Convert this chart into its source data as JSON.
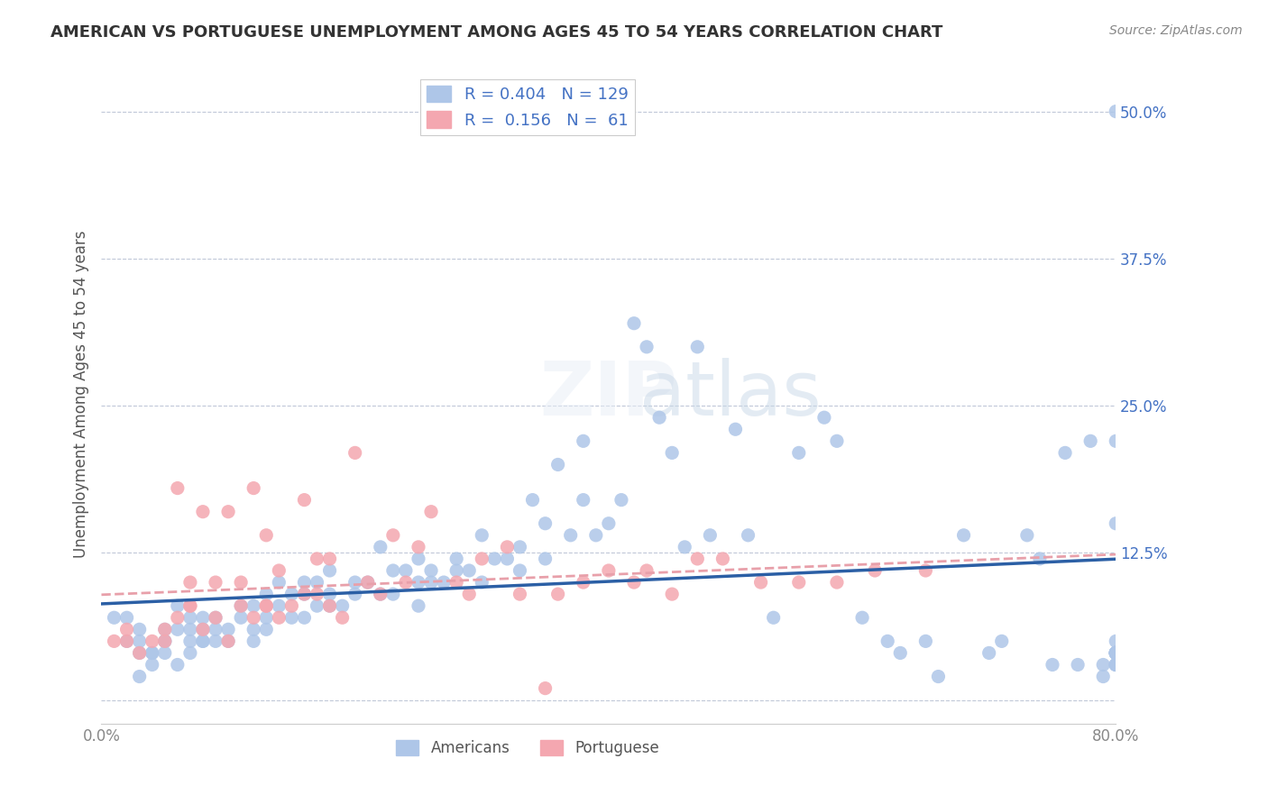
{
  "title": "AMERICAN VS PORTUGUESE UNEMPLOYMENT AMONG AGES 45 TO 54 YEARS CORRELATION CHART",
  "source": "Source: ZipAtlas.com",
  "ylabel": "Unemployment Among Ages 45 to 54 years",
  "xlabel": "",
  "xlim": [
    0.0,
    0.8
  ],
  "ylim": [
    -0.02,
    0.54
  ],
  "xticks": [
    0.0,
    0.2,
    0.4,
    0.6,
    0.8
  ],
  "xtick_labels": [
    "0.0%",
    "",
    "",
    "",
    "80.0%"
  ],
  "ytick_labels": [
    "",
    "12.5%",
    "25.0%",
    "37.5%",
    "50.0%"
  ],
  "yticks": [
    0.0,
    0.125,
    0.25,
    0.375,
    0.5
  ],
  "americans_R": 0.404,
  "americans_N": 129,
  "portuguese_R": 0.156,
  "portuguese_N": 61,
  "americans_color": "#aec6e8",
  "portuguese_color": "#f4a7b0",
  "trend_american_color": "#2b5fa5",
  "trend_portuguese_color": "#e8a0aa",
  "background_color": "#ffffff",
  "watermark": "ZIPatlas",
  "americans_x": [
    0.01,
    0.02,
    0.02,
    0.03,
    0.03,
    0.03,
    0.03,
    0.04,
    0.04,
    0.04,
    0.05,
    0.05,
    0.05,
    0.05,
    0.06,
    0.06,
    0.06,
    0.07,
    0.07,
    0.07,
    0.07,
    0.08,
    0.08,
    0.08,
    0.08,
    0.09,
    0.09,
    0.09,
    0.1,
    0.1,
    0.11,
    0.11,
    0.12,
    0.12,
    0.12,
    0.13,
    0.13,
    0.13,
    0.14,
    0.14,
    0.15,
    0.15,
    0.16,
    0.16,
    0.16,
    0.17,
    0.17,
    0.18,
    0.18,
    0.18,
    0.19,
    0.2,
    0.2,
    0.21,
    0.22,
    0.22,
    0.23,
    0.23,
    0.24,
    0.25,
    0.25,
    0.25,
    0.26,
    0.26,
    0.27,
    0.28,
    0.28,
    0.29,
    0.3,
    0.3,
    0.31,
    0.32,
    0.33,
    0.33,
    0.34,
    0.35,
    0.35,
    0.36,
    0.37,
    0.38,
    0.38,
    0.39,
    0.4,
    0.41,
    0.42,
    0.43,
    0.44,
    0.45,
    0.46,
    0.47,
    0.48,
    0.5,
    0.51,
    0.53,
    0.55,
    0.57,
    0.58,
    0.6,
    0.62,
    0.63,
    0.65,
    0.66,
    0.68,
    0.7,
    0.71,
    0.73,
    0.74,
    0.75,
    0.76,
    0.77,
    0.78,
    0.79,
    0.79,
    0.8,
    0.8,
    0.8,
    0.8,
    0.8,
    0.8,
    0.8,
    0.8,
    0.8,
    0.8,
    0.8,
    0.8,
    0.8,
    0.8,
    0.8,
    0.8,
    0.8
  ],
  "americans_y": [
    0.07,
    0.07,
    0.05,
    0.06,
    0.05,
    0.04,
    0.02,
    0.04,
    0.03,
    0.04,
    0.05,
    0.06,
    0.05,
    0.04,
    0.08,
    0.06,
    0.03,
    0.06,
    0.07,
    0.05,
    0.04,
    0.07,
    0.06,
    0.05,
    0.05,
    0.06,
    0.07,
    0.05,
    0.05,
    0.06,
    0.07,
    0.08,
    0.08,
    0.06,
    0.05,
    0.09,
    0.07,
    0.06,
    0.1,
    0.08,
    0.07,
    0.09,
    0.1,
    0.09,
    0.07,
    0.1,
    0.08,
    0.09,
    0.08,
    0.11,
    0.08,
    0.09,
    0.1,
    0.1,
    0.13,
    0.09,
    0.11,
    0.09,
    0.11,
    0.1,
    0.12,
    0.08,
    0.1,
    0.11,
    0.1,
    0.11,
    0.12,
    0.11,
    0.14,
    0.1,
    0.12,
    0.12,
    0.11,
    0.13,
    0.17,
    0.15,
    0.12,
    0.2,
    0.14,
    0.17,
    0.22,
    0.14,
    0.15,
    0.17,
    0.32,
    0.3,
    0.24,
    0.21,
    0.13,
    0.3,
    0.14,
    0.23,
    0.14,
    0.07,
    0.21,
    0.24,
    0.22,
    0.07,
    0.05,
    0.04,
    0.05,
    0.02,
    0.14,
    0.04,
    0.05,
    0.14,
    0.12,
    0.03,
    0.21,
    0.03,
    0.22,
    0.03,
    0.02,
    0.5,
    0.15,
    0.04,
    0.04,
    0.22,
    0.03,
    0.04,
    0.03,
    0.03,
    0.03,
    0.04,
    0.05,
    0.04,
    0.04,
    0.04,
    0.04,
    0.04
  ],
  "portuguese_x": [
    0.01,
    0.02,
    0.02,
    0.03,
    0.04,
    0.05,
    0.05,
    0.06,
    0.06,
    0.07,
    0.07,
    0.07,
    0.08,
    0.08,
    0.09,
    0.09,
    0.1,
    0.1,
    0.11,
    0.11,
    0.12,
    0.12,
    0.13,
    0.13,
    0.13,
    0.14,
    0.14,
    0.15,
    0.16,
    0.16,
    0.17,
    0.17,
    0.18,
    0.18,
    0.19,
    0.2,
    0.21,
    0.22,
    0.23,
    0.24,
    0.25,
    0.26,
    0.28,
    0.29,
    0.3,
    0.32,
    0.33,
    0.35,
    0.36,
    0.38,
    0.4,
    0.42,
    0.43,
    0.45,
    0.47,
    0.49,
    0.52,
    0.55,
    0.58,
    0.61,
    0.65
  ],
  "portuguese_y": [
    0.05,
    0.05,
    0.06,
    0.04,
    0.05,
    0.06,
    0.05,
    0.07,
    0.18,
    0.08,
    0.1,
    0.08,
    0.06,
    0.16,
    0.1,
    0.07,
    0.05,
    0.16,
    0.1,
    0.08,
    0.18,
    0.07,
    0.08,
    0.14,
    0.08,
    0.07,
    0.11,
    0.08,
    0.09,
    0.17,
    0.12,
    0.09,
    0.08,
    0.12,
    0.07,
    0.21,
    0.1,
    0.09,
    0.14,
    0.1,
    0.13,
    0.16,
    0.1,
    0.09,
    0.12,
    0.13,
    0.09,
    0.01,
    0.09,
    0.1,
    0.11,
    0.1,
    0.11,
    0.09,
    0.12,
    0.12,
    0.1,
    0.1,
    0.1,
    0.11,
    0.11
  ]
}
